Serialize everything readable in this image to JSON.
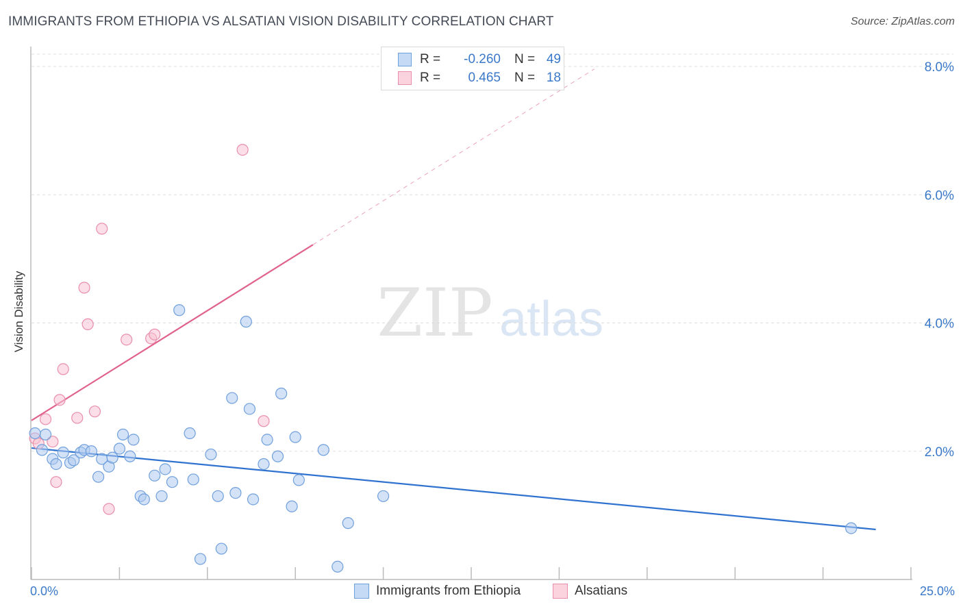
{
  "header": {
    "title": "IMMIGRANTS FROM ETHIOPIA VS ALSATIAN VISION DISABILITY CORRELATION CHART",
    "source": "Source: ZipAtlas.com"
  },
  "watermark": {
    "zip": "ZIP",
    "atlas": "atlas"
  },
  "legend": {
    "rows": [
      {
        "r_label": "R =",
        "r_value": "-0.260",
        "n_label": "N =",
        "n_value": "49"
      },
      {
        "r_label": "R =",
        "r_value": "0.465",
        "n_label": "N =",
        "n_value": "18"
      }
    ]
  },
  "bottom_legend": {
    "items": [
      "Immigrants from Ethiopia",
      "Alsatians"
    ]
  },
  "colors": {
    "blue_fill": "#aecbf0",
    "blue_stroke": "#6f9fdc",
    "blue_line": "#2f72cf",
    "pink_fill": "#f7c3d3",
    "pink_stroke": "#e98dab",
    "pink_line": "#e0628b",
    "grid": "#dddddd",
    "axis_text": "#3a78c9"
  },
  "chart_data": {
    "type": "scatter",
    "title": "IMMIGRANTS FROM ETHIOPIA VS ALSATIAN VISION DISABILITY CORRELATION CHART",
    "xlabel": "",
    "ylabel": "Vision Disability",
    "xlim": [
      0,
      25
    ],
    "ylim": [
      0,
      8
    ],
    "x_tick_labels": [
      "0.0%",
      "25.0%"
    ],
    "y_ticks": [
      2,
      4,
      6,
      8
    ],
    "y_tick_labels": [
      "2.0%",
      "4.0%",
      "6.0%",
      "8.0%"
    ],
    "series": [
      {
        "name": "Immigrants from Ethiopia",
        "color": "blue",
        "r": -0.26,
        "n": 49,
        "trend": {
          "x": [
            0,
            24
          ],
          "y": [
            2.05,
            0.78
          ]
        },
        "points": [
          [
            0.1,
            2.28
          ],
          [
            0.3,
            2.02
          ],
          [
            0.4,
            2.26
          ],
          [
            0.6,
            1.88
          ],
          [
            0.7,
            1.8
          ],
          [
            0.9,
            1.98
          ],
          [
            1.1,
            1.82
          ],
          [
            1.2,
            1.86
          ],
          [
            1.4,
            1.98
          ],
          [
            1.5,
            2.02
          ],
          [
            1.7,
            2.0
          ],
          [
            1.9,
            1.6
          ],
          [
            2.0,
            1.88
          ],
          [
            2.2,
            1.76
          ],
          [
            2.3,
            1.9
          ],
          [
            2.5,
            2.04
          ],
          [
            2.6,
            2.26
          ],
          [
            2.8,
            1.92
          ],
          [
            2.9,
            2.18
          ],
          [
            3.1,
            1.3
          ],
          [
            3.2,
            1.25
          ],
          [
            3.5,
            1.62
          ],
          [
            3.7,
            1.3
          ],
          [
            3.8,
            1.72
          ],
          [
            4.0,
            1.52
          ],
          [
            4.2,
            4.2
          ],
          [
            4.5,
            2.28
          ],
          [
            4.6,
            1.56
          ],
          [
            4.8,
            0.32
          ],
          [
            5.1,
            1.95
          ],
          [
            5.3,
            1.3
          ],
          [
            5.4,
            0.48
          ],
          [
            5.7,
            2.83
          ],
          [
            5.8,
            1.35
          ],
          [
            6.1,
            4.02
          ],
          [
            6.2,
            2.66
          ],
          [
            6.3,
            1.25
          ],
          [
            6.6,
            1.8
          ],
          [
            6.7,
            2.18
          ],
          [
            7.0,
            1.92
          ],
          [
            7.1,
            2.9
          ],
          [
            7.4,
            1.14
          ],
          [
            7.5,
            2.22
          ],
          [
            7.6,
            1.55
          ],
          [
            8.3,
            2.02
          ],
          [
            8.7,
            0.2
          ],
          [
            9.0,
            0.88
          ],
          [
            10.0,
            1.3
          ],
          [
            23.3,
            0.8
          ]
        ]
      },
      {
        "name": "Alsatians",
        "color": "pink",
        "r": 0.465,
        "n": 18,
        "trend": {
          "x": [
            0,
            8
          ],
          "y": [
            2.48,
            5.22
          ]
        },
        "trend_ext": {
          "x": [
            8,
            16
          ],
          "y": [
            5.22,
            7.96
          ]
        },
        "points": [
          [
            0.1,
            2.2
          ],
          [
            0.2,
            2.12
          ],
          [
            0.4,
            2.5
          ],
          [
            0.6,
            2.15
          ],
          [
            0.7,
            1.52
          ],
          [
            0.8,
            2.8
          ],
          [
            0.9,
            3.28
          ],
          [
            1.3,
            2.52
          ],
          [
            1.5,
            4.55
          ],
          [
            1.6,
            3.98
          ],
          [
            1.8,
            2.62
          ],
          [
            2.0,
            5.47
          ],
          [
            2.2,
            1.1
          ],
          [
            2.7,
            3.74
          ],
          [
            3.4,
            3.76
          ],
          [
            3.5,
            3.82
          ],
          [
            6.0,
            6.7
          ],
          [
            6.6,
            2.47
          ]
        ]
      }
    ]
  }
}
